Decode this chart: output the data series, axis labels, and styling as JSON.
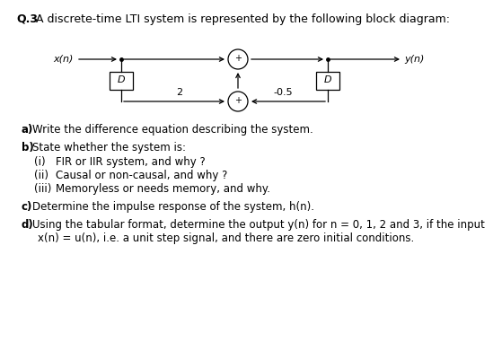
{
  "title_q": "Q.3",
  "title_text": "  A discrete-time LTI system is represented by the following block diagram:",
  "bg_color": "#ffffff",
  "questions": [
    {
      "bold": "a)",
      "text": "  Write the difference equation describing the system."
    },
    {
      "bold": "b)",
      "text": "  State whether the system is:"
    },
    {
      "bold": "(i)",
      "text": "    FIR or IIR system, and why ?"
    },
    {
      "bold": "(ii)",
      "text": "   Causal or non-causal, and why ?"
    },
    {
      "bold": "(iii)",
      "text": "  Memoryless or needs memory, and why."
    },
    {
      "bold": "c)",
      "text": "  Determine the impulse response of the system, h(n)."
    },
    {
      "bold": "d)",
      "text": "  Using the tabular format, determine the output y(n) for n = 0, 1, 2 and 3, if the input"
    },
    {
      "bold": "",
      "text": "       x(n) = u(n), i.e. a unit step signal, and there are zero initial conditions."
    }
  ],
  "diagram": {
    "xn": "x(n)",
    "yn": "y(n)",
    "D": "D",
    "c2": "2",
    "c05": "-0.5",
    "plus": "+"
  },
  "font_title": 9,
  "font_q": 8.5,
  "font_diag": 8
}
